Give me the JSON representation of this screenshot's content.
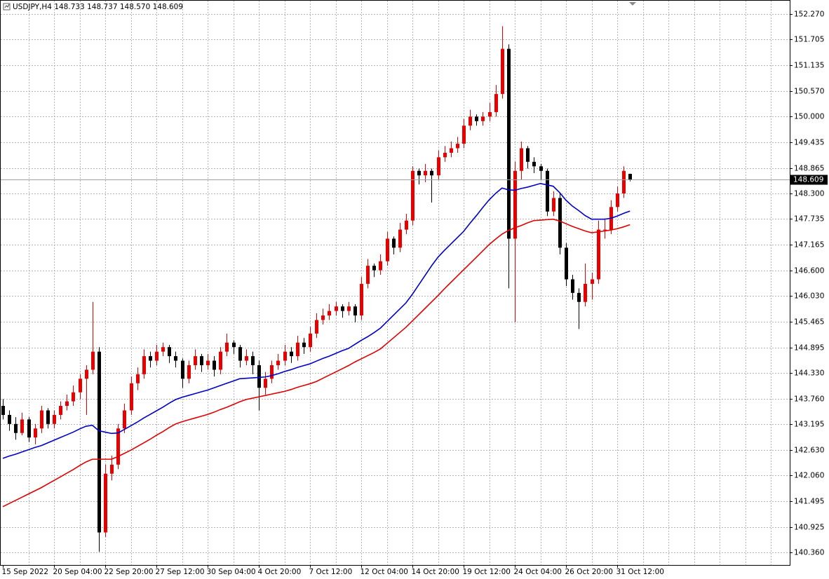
{
  "chart_data": {
    "type": "candlestick",
    "symbol": "USDJPY,H4",
    "last_bar_labels": [
      "148.733",
      "148.737",
      "148.570",
      "148.609"
    ],
    "up_color": "#e60000",
    "down_color": "#000000",
    "grid": true,
    "ylim": [
      140.08,
      152.58
    ],
    "yticks": [
      {
        "value": 152.27,
        "label": "152.270"
      },
      151.705,
      151.135,
      {
        "value": 150.57,
        "label": "150.570"
      },
      {
        "value": 150,
        "label": "150.000"
      },
      149.435,
      148.865,
      {
        "value": 148.3,
        "label": "148.300"
      },
      147.735,
      147.165,
      {
        "value": 146.6,
        "label": "146.600"
      },
      {
        "value": 146.03,
        "label": "146.030"
      },
      145.465,
      144.895,
      {
        "value": 144.33,
        "label": "144.330"
      },
      {
        "value": 143.76,
        "label": "143.760"
      },
      143.195,
      {
        "value": 142.63,
        "label": "142.630"
      },
      {
        "value": 142.06,
        "label": "142.060"
      },
      141.495,
      140.925,
      {
        "value": 140.36,
        "label": "140.360"
      }
    ],
    "categories": [
      "15 Sep 2022",
      null,
      null,
      null,
      null,
      null,
      null,
      null,
      "20 Sep 04:00",
      null,
      null,
      null,
      null,
      null,
      null,
      null,
      "22 Sep 20:00",
      null,
      null,
      null,
      null,
      null,
      null,
      null,
      "27 Sep 12:00",
      null,
      null,
      null,
      null,
      null,
      null,
      null,
      "30 Sep 04:00",
      null,
      null,
      null,
      null,
      null,
      null,
      null,
      "4 Oct 20:00",
      null,
      null,
      null,
      null,
      null,
      null,
      null,
      "7 Oct 12:00",
      null,
      null,
      null,
      null,
      null,
      null,
      null,
      "12 Oct 04:00",
      null,
      null,
      null,
      null,
      null,
      null,
      null,
      "14 Oct 20:00",
      null,
      null,
      null,
      null,
      null,
      null,
      null,
      "19 Oct 12:00",
      null,
      null,
      null,
      null,
      null,
      null,
      null,
      "24 Oct 04:00",
      null,
      null,
      null,
      null,
      null,
      null,
      null,
      "26 Oct 20:00",
      null,
      null,
      null,
      null,
      null,
      null,
      null,
      "31 Oct 12:00",
      null,
      null
    ],
    "open": [
      143.6,
      143.4,
      143.2,
      143.0,
      143.3,
      142.9,
      143.1,
      143.5,
      143.2,
      143.4,
      143.6,
      143.7,
      143.9,
      144.2,
      144.4,
      144.8,
      140.8,
      142.1,
      142.3,
      143.1,
      143.5,
      144.1,
      144.3,
      144.7,
      144.6,
      144.8,
      144.9,
      144.7,
      144.6,
      144.2,
      144.5,
      144.7,
      144.5,
      144.6,
      144.4,
      144.8,
      145.0,
      144.9,
      144.6,
      144.7,
      144.5,
      144.0,
      144.2,
      144.5,
      144.6,
      144.8,
      144.7,
      145.0,
      144.9,
      145.2,
      145.5,
      145.6,
      145.7,
      145.8,
      145.7,
      145.8,
      145.6,
      146.3,
      146.7,
      146.6,
      146.8,
      147.3,
      147.1,
      147.5,
      147.7,
      148.8,
      148.7,
      148.8,
      148.7,
      149.1,
      149.2,
      149.3,
      149.4,
      149.8,
      150.0,
      149.9,
      150.0,
      150.1,
      150.5,
      151.5,
      147.3,
      148.8,
      149.3,
      149.0,
      148.9,
      148.8,
      147.9,
      148.2,
      147.1,
      146.4,
      146.1,
      145.9,
      146.3,
      146.4,
      147.5,
      147.5,
      148.0,
      148.3,
      148.733
    ],
    "high": [
      143.75,
      143.5,
      143.35,
      143.45,
      143.35,
      143.2,
      143.6,
      143.55,
      143.5,
      143.7,
      143.85,
      144.05,
      144.3,
      144.5,
      145.9,
      144.9,
      142.3,
      142.5,
      143.2,
      143.65,
      144.25,
      144.45,
      144.85,
      144.8,
      144.95,
      145.0,
      144.95,
      144.8,
      144.65,
      144.6,
      144.85,
      144.75,
      144.75,
      144.7,
      144.9,
      145.2,
      145.05,
      144.95,
      144.85,
      144.8,
      144.6,
      144.35,
      144.6,
      144.75,
      144.95,
      144.9,
      145.15,
      145.1,
      145.35,
      145.65,
      145.75,
      145.85,
      145.9,
      145.85,
      145.9,
      145.85,
      146.45,
      146.85,
      146.75,
      146.95,
      147.45,
      147.35,
      147.65,
      147.85,
      148.9,
      148.85,
      148.95,
      148.85,
      149.25,
      149.35,
      149.45,
      149.55,
      149.95,
      150.15,
      150.05,
      150.1,
      150.3,
      150.7,
      152.0,
      151.6,
      149.0,
      149.45,
      149.35,
      149.1,
      148.95,
      148.85,
      148.35,
      148.3,
      147.2,
      146.5,
      146.2,
      146.75,
      146.55,
      147.7,
      147.75,
      148.15,
      148.45,
      148.9,
      148.737
    ],
    "low": [
      143.3,
      143.05,
      142.85,
      142.95,
      142.8,
      142.75,
      143.0,
      143.1,
      143.1,
      143.3,
      143.5,
      143.6,
      143.75,
      143.4,
      144.3,
      140.37,
      140.7,
      141.95,
      142.2,
      143.0,
      143.4,
      143.95,
      144.2,
      144.45,
      144.5,
      144.7,
      144.55,
      144.45,
      144.0,
      144.1,
      144.4,
      144.35,
      144.4,
      144.25,
      144.3,
      144.7,
      144.75,
      144.45,
      144.5,
      144.3,
      143.5,
      143.85,
      144.1,
      144.4,
      144.5,
      144.55,
      144.6,
      144.75,
      144.8,
      145.1,
      145.4,
      145.5,
      145.6,
      145.55,
      145.6,
      145.45,
      145.5,
      146.2,
      146.45,
      146.5,
      146.7,
      146.95,
      147.0,
      147.4,
      147.6,
      148.5,
      148.55,
      148.1,
      148.6,
      149.0,
      149.1,
      149.2,
      149.3,
      149.7,
      149.8,
      149.8,
      149.9,
      150.0,
      150.4,
      146.2,
      145.45,
      148.6,
      148.85,
      148.75,
      148.6,
      147.8,
      147.8,
      146.95,
      146.25,
      145.95,
      145.3,
      145.8,
      145.95,
      146.3,
      147.3,
      147.4,
      147.9,
      148.2,
      148.57
    ],
    "close": [
      143.4,
      143.2,
      143.0,
      143.3,
      142.9,
      143.1,
      143.5,
      143.2,
      143.4,
      143.6,
      143.7,
      143.9,
      144.2,
      144.4,
      144.8,
      140.8,
      142.1,
      142.3,
      143.1,
      143.5,
      144.1,
      144.3,
      144.7,
      144.6,
      144.8,
      144.9,
      144.7,
      144.6,
      144.2,
      144.5,
      144.7,
      144.5,
      144.6,
      144.4,
      144.8,
      145.0,
      144.9,
      144.6,
      144.7,
      144.5,
      144.0,
      144.2,
      144.5,
      144.6,
      144.8,
      144.7,
      145.0,
      144.9,
      145.2,
      145.5,
      145.6,
      145.7,
      145.8,
      145.7,
      145.8,
      145.6,
      146.3,
      146.7,
      146.6,
      146.8,
      147.3,
      147.1,
      147.5,
      147.7,
      148.8,
      148.7,
      148.8,
      148.7,
      149.1,
      149.2,
      149.3,
      149.4,
      149.8,
      150.0,
      149.9,
      150.0,
      150.1,
      150.5,
      151.5,
      147.3,
      148.8,
      149.3,
      149.0,
      148.9,
      148.8,
      147.9,
      148.2,
      147.1,
      146.4,
      146.1,
      145.9,
      146.3,
      146.4,
      147.5,
      147.5,
      148.0,
      148.3,
      148.8,
      148.609
    ],
    "overlays": [
      {
        "color": "#0000c8",
        "values": [
          142.44,
          142.49,
          142.53,
          142.58,
          142.63,
          142.68,
          142.72,
          142.78,
          142.84,
          142.9,
          142.96,
          143.02,
          143.09,
          143.15,
          143.17,
          143.05,
          143.02,
          142.99,
          143.0,
          143.08,
          143.16,
          143.24,
          143.33,
          143.41,
          143.49,
          143.57,
          143.66,
          143.74,
          143.79,
          143.83,
          143.87,
          143.91,
          143.95,
          144.0,
          144.05,
          144.1,
          144.15,
          144.2,
          144.21,
          144.22,
          144.23,
          144.24,
          144.27,
          144.31,
          144.36,
          144.4,
          144.45,
          144.49,
          144.53,
          144.59,
          144.65,
          144.7,
          144.76,
          144.82,
          144.87,
          144.96,
          145.05,
          145.13,
          145.22,
          145.32,
          145.46,
          145.6,
          145.74,
          145.88,
          146.07,
          146.28,
          146.49,
          146.7,
          146.89,
          147.04,
          147.18,
          147.32,
          147.46,
          147.64,
          147.81,
          147.99,
          148.16,
          148.3,
          148.42,
          148.38,
          148.37,
          148.41,
          148.44,
          148.48,
          148.52,
          148.49,
          148.46,
          148.32,
          148.15,
          148.02,
          147.92,
          147.81,
          147.73,
          147.73,
          147.73,
          147.75,
          147.8,
          147.86,
          147.91
        ]
      },
      {
        "color": "#e00000",
        "values": [
          141.37,
          141.44,
          141.51,
          141.58,
          141.65,
          141.72,
          141.79,
          141.87,
          141.95,
          142.03,
          142.11,
          142.19,
          142.28,
          142.36,
          142.42,
          142.42,
          142.42,
          142.42,
          142.48,
          142.55,
          142.62,
          142.7,
          142.78,
          142.86,
          142.95,
          143.03,
          143.12,
          143.2,
          143.25,
          143.29,
          143.33,
          143.37,
          143.41,
          143.46,
          143.52,
          143.57,
          143.63,
          143.69,
          143.74,
          143.77,
          143.8,
          143.83,
          143.86,
          143.89,
          143.92,
          143.96,
          144.01,
          144.05,
          144.09,
          144.14,
          144.21,
          144.28,
          144.35,
          144.42,
          144.49,
          144.57,
          144.64,
          144.71,
          144.78,
          144.86,
          144.98,
          145.1,
          145.22,
          145.34,
          145.48,
          145.62,
          145.76,
          145.9,
          146.04,
          146.19,
          146.33,
          146.47,
          146.61,
          146.75,
          146.89,
          147.03,
          147.17,
          147.29,
          147.4,
          147.48,
          147.54,
          147.59,
          147.65,
          147.7,
          147.71,
          147.72,
          147.73,
          147.69,
          147.63,
          147.57,
          147.52,
          147.47,
          147.43,
          147.45,
          147.47,
          147.49,
          147.52,
          147.56,
          147.61
        ]
      }
    ]
  }
}
